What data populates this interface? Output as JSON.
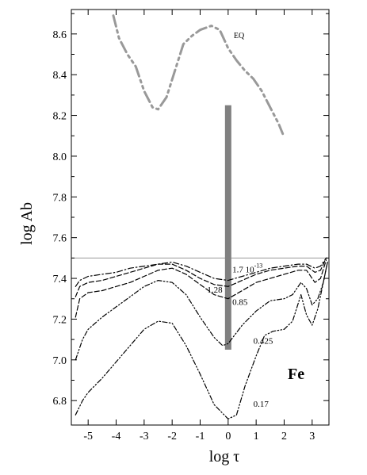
{
  "chart_data": {
    "type": "line",
    "title": "",
    "xlabel": "log τ",
    "ylabel": "log Ab",
    "xlim": [
      -5.6,
      3.6
    ],
    "ylim": [
      6.68,
      8.72
    ],
    "xticks": [
      -5,
      -4,
      -3,
      -2,
      -1,
      0,
      1,
      2,
      3
    ],
    "yticks": [
      6.8,
      7.0,
      7.2,
      7.4,
      7.6,
      7.8,
      8.0,
      8.2,
      8.4,
      8.6
    ],
    "element_label": "Fe",
    "reference_line": {
      "y": 7.5,
      "color": "#999999"
    },
    "vertical_bar": {
      "x": 0.0,
      "y_range": [
        7.05,
        8.25
      ],
      "color": "#808080"
    },
    "series": [
      {
        "name": "EQ",
        "color": "#999999",
        "style": "dash-dot-dot",
        "label_at": [
          0.2,
          8.58
        ],
        "x": [
          -4.1,
          -3.9,
          -3.6,
          -3.3,
          -3.0,
          -2.7,
          -2.5,
          -2.2,
          -1.9,
          -1.6,
          -1.3,
          -1.0,
          -0.6,
          -0.3,
          0.0,
          0.3,
          0.6,
          0.9,
          1.2,
          1.5,
          1.8,
          1.95
        ],
        "y": [
          8.69,
          8.58,
          8.5,
          8.44,
          8.32,
          8.24,
          8.23,
          8.29,
          8.42,
          8.55,
          8.59,
          8.62,
          8.64,
          8.62,
          8.53,
          8.47,
          8.42,
          8.38,
          8.32,
          8.24,
          8.16,
          8.11
        ]
      },
      {
        "name": "1.7 10-13",
        "label_main": "1.7 10",
        "label_exp": "-13",
        "color": "#000000",
        "style": "dash-dot",
        "label_at": [
          0.15,
          7.43
        ],
        "x": [
          -5.45,
          -5.3,
          -5.0,
          -4.5,
          -4.0,
          -3.5,
          -3.0,
          -2.5,
          -2.0,
          -1.5,
          -1.0,
          -0.5,
          0.0,
          0.5,
          1.0,
          1.5,
          2.0,
          2.5,
          2.8,
          3.1,
          3.3,
          3.5
        ],
        "y": [
          7.36,
          7.39,
          7.41,
          7.42,
          7.43,
          7.45,
          7.46,
          7.47,
          7.48,
          7.46,
          7.43,
          7.4,
          7.39,
          7.41,
          7.43,
          7.45,
          7.46,
          7.47,
          7.47,
          7.45,
          7.46,
          7.5
        ]
      },
      {
        "name": "1.28",
        "color": "#000000",
        "style": "dashed",
        "label_at": [
          -0.75,
          7.33
        ],
        "x": [
          -5.45,
          -5.3,
          -5.0,
          -4.5,
          -4.0,
          -3.5,
          -3.0,
          -2.5,
          -2.0,
          -1.5,
          -1.0,
          -0.5,
          0.0,
          0.5,
          1.0,
          1.5,
          2.0,
          2.5,
          2.8,
          3.1,
          3.3,
          3.5
        ],
        "y": [
          7.31,
          7.36,
          7.38,
          7.39,
          7.41,
          7.43,
          7.45,
          7.47,
          7.47,
          7.44,
          7.4,
          7.37,
          7.36,
          7.39,
          7.42,
          7.44,
          7.45,
          7.46,
          7.46,
          7.43,
          7.44,
          7.5
        ]
      },
      {
        "name": "0.85",
        "color": "#000000",
        "style": "dashed",
        "label_at": [
          0.15,
          7.27
        ],
        "x": [
          -5.45,
          -5.3,
          -5.0,
          -4.5,
          -4.0,
          -3.5,
          -3.0,
          -2.5,
          -2.0,
          -1.5,
          -1.0,
          -0.5,
          0.0,
          0.5,
          1.0,
          1.5,
          2.0,
          2.5,
          2.8,
          3.1,
          3.3,
          3.5
        ],
        "y": [
          7.21,
          7.3,
          7.33,
          7.34,
          7.36,
          7.38,
          7.41,
          7.44,
          7.45,
          7.42,
          7.37,
          7.32,
          7.3,
          7.34,
          7.38,
          7.4,
          7.42,
          7.44,
          7.44,
          7.38,
          7.4,
          7.49
        ]
      },
      {
        "name": "0.425",
        "color": "#000000",
        "style": "dash-dot-dot",
        "label_at": [
          0.9,
          7.08
        ],
        "x": [
          -5.45,
          -5.2,
          -5.0,
          -4.5,
          -4.0,
          -3.5,
          -3.0,
          -2.5,
          -2.0,
          -1.5,
          -1.0,
          -0.5,
          -0.2,
          0.0,
          0.5,
          1.0,
          1.5,
          2.0,
          2.3,
          2.6,
          2.8,
          3.0,
          3.2,
          3.4,
          3.55
        ],
        "y": [
          7.0,
          7.1,
          7.15,
          7.21,
          7.26,
          7.31,
          7.36,
          7.39,
          7.38,
          7.32,
          7.21,
          7.11,
          7.07,
          7.08,
          7.17,
          7.24,
          7.29,
          7.3,
          7.32,
          7.38,
          7.35,
          7.27,
          7.3,
          7.38,
          7.48
        ]
      },
      {
        "name": "0.17",
        "color": "#000000",
        "style": "dash-dot-dot",
        "label_at": [
          0.9,
          6.77
        ],
        "x": [
          -5.45,
          -5.2,
          -5.0,
          -4.5,
          -4.0,
          -3.5,
          -3.0,
          -2.5,
          -2.0,
          -1.5,
          -1.0,
          -0.5,
          0.0,
          0.3,
          0.6,
          1.0,
          1.3,
          1.6,
          2.0,
          2.3,
          2.6,
          2.8,
          3.0,
          3.2,
          3.4,
          3.55
        ],
        "y": [
          6.73,
          6.8,
          6.84,
          6.91,
          6.99,
          7.07,
          7.15,
          7.19,
          7.18,
          7.07,
          6.93,
          6.78,
          6.71,
          6.73,
          6.87,
          7.02,
          7.12,
          7.14,
          7.15,
          7.19,
          7.32,
          7.22,
          7.17,
          7.25,
          7.38,
          7.48
        ]
      }
    ]
  }
}
